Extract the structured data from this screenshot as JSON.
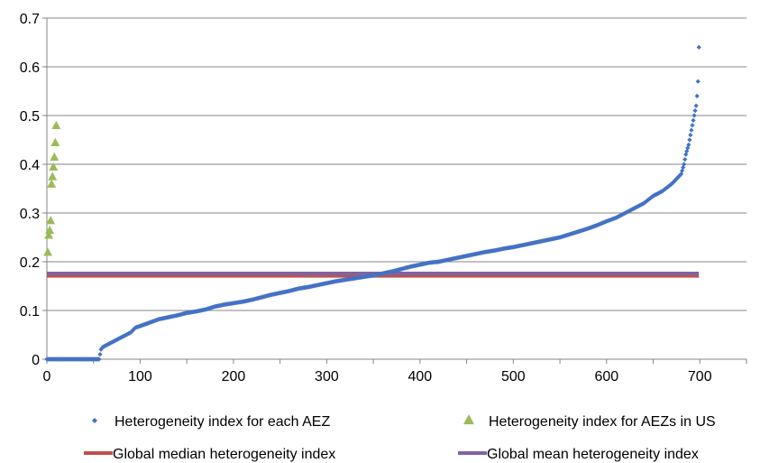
{
  "chart_data": {
    "type": "scatter",
    "title": "",
    "xlabel": "",
    "ylabel": "",
    "xlim": [
      0,
      750
    ],
    "ylim": [
      0,
      0.7
    ],
    "x_ticks": [
      "0",
      "100",
      "200",
      "300",
      "400",
      "500",
      "600",
      "700"
    ],
    "y_ticks": [
      "0",
      "0.1",
      "0.2",
      "0.3",
      "0.4",
      "0.5",
      "0.6",
      "0.7"
    ],
    "grid": "horizontal",
    "legend_position": "bottom",
    "series": [
      {
        "name": "Heterogeneity index for each AEZ",
        "kind": "points",
        "marker": "diamond",
        "color": "#4472C4",
        "points": [
          [
            0,
            0
          ],
          [
            20,
            0
          ],
          [
            40,
            0
          ],
          [
            56,
            0
          ],
          [
            57,
            0.01
          ],
          [
            58,
            0.02
          ],
          [
            60,
            0.025
          ],
          [
            65,
            0.03
          ],
          [
            70,
            0.035
          ],
          [
            75,
            0.04
          ],
          [
            80,
            0.045
          ],
          [
            85,
            0.05
          ],
          [
            90,
            0.055
          ],
          [
            95,
            0.065
          ],
          [
            100,
            0.068
          ],
          [
            110,
            0.075
          ],
          [
            120,
            0.082
          ],
          [
            130,
            0.086
          ],
          [
            140,
            0.09
          ],
          [
            150,
            0.095
          ],
          [
            160,
            0.098
          ],
          [
            170,
            0.102
          ],
          [
            180,
            0.108
          ],
          [
            190,
            0.112
          ],
          [
            200,
            0.115
          ],
          [
            210,
            0.118
          ],
          [
            220,
            0.122
          ],
          [
            230,
            0.127
          ],
          [
            240,
            0.132
          ],
          [
            250,
            0.136
          ],
          [
            260,
            0.14
          ],
          [
            270,
            0.145
          ],
          [
            280,
            0.148
          ],
          [
            290,
            0.152
          ],
          [
            300,
            0.156
          ],
          [
            310,
            0.16
          ],
          [
            320,
            0.163
          ],
          [
            330,
            0.166
          ],
          [
            340,
            0.169
          ],
          [
            350,
            0.172
          ],
          [
            360,
            0.176
          ],
          [
            370,
            0.18
          ],
          [
            380,
            0.185
          ],
          [
            390,
            0.19
          ],
          [
            400,
            0.194
          ],
          [
            410,
            0.198
          ],
          [
            420,
            0.2
          ],
          [
            430,
            0.204
          ],
          [
            440,
            0.208
          ],
          [
            450,
            0.212
          ],
          [
            460,
            0.216
          ],
          [
            470,
            0.22
          ],
          [
            480,
            0.223
          ],
          [
            490,
            0.227
          ],
          [
            500,
            0.23
          ],
          [
            510,
            0.234
          ],
          [
            520,
            0.238
          ],
          [
            530,
            0.242
          ],
          [
            540,
            0.246
          ],
          [
            550,
            0.25
          ],
          [
            560,
            0.256
          ],
          [
            570,
            0.262
          ],
          [
            580,
            0.268
          ],
          [
            590,
            0.275
          ],
          [
            600,
            0.283
          ],
          [
            610,
            0.29
          ],
          [
            620,
            0.3
          ],
          [
            630,
            0.31
          ],
          [
            640,
            0.32
          ],
          [
            650,
            0.335
          ],
          [
            660,
            0.345
          ],
          [
            670,
            0.36
          ],
          [
            675,
            0.37
          ],
          [
            680,
            0.38
          ],
          [
            683,
            0.4
          ],
          [
            685,
            0.42
          ],
          [
            688,
            0.44
          ],
          [
            690,
            0.46
          ],
          [
            692,
            0.48
          ],
          [
            694,
            0.5
          ],
          [
            696,
            0.52
          ],
          [
            697,
            0.54
          ],
          [
            698,
            0.57
          ],
          [
            699,
            0.64
          ]
        ]
      },
      {
        "name": "Heterogeneity index for AEZs in US",
        "kind": "points",
        "marker": "triangle",
        "color": "#9BBB59",
        "points": [
          [
            1,
            0.22
          ],
          [
            2,
            0.255
          ],
          [
            3,
            0.265
          ],
          [
            4,
            0.285
          ],
          [
            5,
            0.36
          ],
          [
            6,
            0.375
          ],
          [
            7,
            0.395
          ],
          [
            8,
            0.415
          ],
          [
            9,
            0.445
          ],
          [
            10,
            0.48
          ]
        ]
      },
      {
        "name": "Global median heterogeneity index",
        "kind": "hline",
        "color": "#C0504D",
        "y": 0.171,
        "x_range": [
          0,
          699
        ]
      },
      {
        "name": "Global mean heterogeneity index",
        "kind": "hline",
        "color": "#8064A2",
        "y": 0.176,
        "x_range": [
          0,
          699
        ]
      }
    ]
  }
}
